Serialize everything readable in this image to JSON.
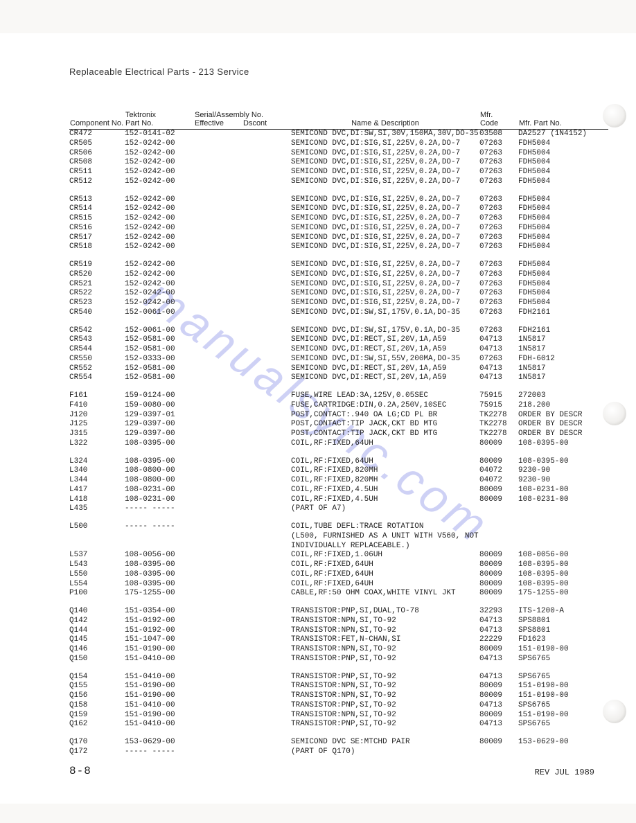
{
  "page_title": "Replaceable Electrical Parts - 213 Service",
  "headers": {
    "component": "Component No.",
    "tektronix": "Tektronix",
    "part_no": "Part No.",
    "serial_asm": "Serial/Assembly No.",
    "effective": "Effective",
    "dscont": "Dscont",
    "name_desc": "Name & Description",
    "mfr": "Mfr.",
    "code": "Code",
    "mfr_part": "Mfr. Part No."
  },
  "footer_left": "8-8",
  "footer_right": "REV JUL 1989",
  "watermark": "manualsync.com",
  "groups": [
    [
      {
        "comp": "CR472",
        "part": "152-0141-02",
        "eff": "",
        "dsc": "",
        "desc": "SEMICOND DVC,DI:SW,SI,30V,150MA,30V,DO-35",
        "code": "03508",
        "mfr": "DA2527 (1N4152)"
      },
      {
        "comp": "CR505",
        "part": "152-0242-00",
        "eff": "",
        "dsc": "",
        "desc": "SEMICOND DVC,DI:SIG,SI,225V,0.2A,DO-7",
        "code": "07263",
        "mfr": "FDH5004"
      },
      {
        "comp": "CR506",
        "part": "152-0242-00",
        "eff": "",
        "dsc": "",
        "desc": "SEMICOND DVC,DI:SIG,SI,225V,0.2A,DO-7",
        "code": "07263",
        "mfr": "FDH5004"
      },
      {
        "comp": "CR508",
        "part": "152-0242-00",
        "eff": "",
        "dsc": "",
        "desc": "SEMICOND DVC,DI:SIG,SI,225V,0.2A,DO-7",
        "code": "07263",
        "mfr": "FDH5004"
      },
      {
        "comp": "CR511",
        "part": "152-0242-00",
        "eff": "",
        "dsc": "",
        "desc": "SEMICOND DVC,DI:SIG,SI,225V,0.2A,DO-7",
        "code": "07263",
        "mfr": "FDH5004"
      },
      {
        "comp": "CR512",
        "part": "152-0242-00",
        "eff": "",
        "dsc": "",
        "desc": "SEMICOND DVC,DI:SIG,SI,225V,0.2A,DO-7",
        "code": "07263",
        "mfr": "FDH5004"
      }
    ],
    [
      {
        "comp": "CR513",
        "part": "152-0242-00",
        "eff": "",
        "dsc": "",
        "desc": "SEMICOND DVC,DI:SIG,SI,225V,0.2A,DO-7",
        "code": "07263",
        "mfr": "FDH5004"
      },
      {
        "comp": "CR514",
        "part": "152-0242-00",
        "eff": "",
        "dsc": "",
        "desc": "SEMICOND DVC,DI:SIG,SI,225V,0.2A,DO-7",
        "code": "07263",
        "mfr": "FDH5004"
      },
      {
        "comp": "CR515",
        "part": "152-0242-00",
        "eff": "",
        "dsc": "",
        "desc": "SEMICOND DVC,DI:SIG,SI,225V,0.2A,DO-7",
        "code": "07263",
        "mfr": "FDH5004"
      },
      {
        "comp": "CR516",
        "part": "152-0242-00",
        "eff": "",
        "dsc": "",
        "desc": "SEMICOND DVC,DI:SIG,SI,225V,0.2A,DO-7",
        "code": "07263",
        "mfr": "FDH5004"
      },
      {
        "comp": "CR517",
        "part": "152-0242-00",
        "eff": "",
        "dsc": "",
        "desc": "SEMICOND DVC,DI:SIG,SI,225V,0.2A,DO-7",
        "code": "07263",
        "mfr": "FDH5004"
      },
      {
        "comp": "CR518",
        "part": "152-0242-00",
        "eff": "",
        "dsc": "",
        "desc": "SEMICOND DVC,DI:SIG,SI,225V,0.2A,DO-7",
        "code": "07263",
        "mfr": "FDH5004"
      }
    ],
    [
      {
        "comp": "CR519",
        "part": "152-0242-00",
        "eff": "",
        "dsc": "",
        "desc": "SEMICOND DVC,DI:SIG,SI,225V,0.2A,DO-7",
        "code": "07263",
        "mfr": "FDH5004"
      },
      {
        "comp": "CR520",
        "part": "152-0242-00",
        "eff": "",
        "dsc": "",
        "desc": "SEMICOND DVC,DI:SIG,SI,225V,0.2A,DO-7",
        "code": "07263",
        "mfr": "FDH5004"
      },
      {
        "comp": "CR521",
        "part": "152-0242-00",
        "eff": "",
        "dsc": "",
        "desc": "SEMICOND DVC,DI:SIG,SI,225V,0.2A,DO-7",
        "code": "07263",
        "mfr": "FDH5004"
      },
      {
        "comp": "CR522",
        "part": "152-0242-00",
        "eff": "",
        "dsc": "",
        "desc": "SEMICOND DVC,DI:SIG,SI,225V,0.2A,DO-7",
        "code": "07263",
        "mfr": "FDH5004"
      },
      {
        "comp": "CR523",
        "part": "152-0242-00",
        "eff": "",
        "dsc": "",
        "desc": "SEMICOND DVC,DI:SIG,SI,225V,0.2A,DO-7",
        "code": "07263",
        "mfr": "FDH5004"
      },
      {
        "comp": "CR540",
        "part": "152-0061-00",
        "eff": "",
        "dsc": "",
        "desc": "SEMICOND DVC,DI:SW,SI,175V,0.1A,DO-35",
        "code": "07263",
        "mfr": "FDH2161"
      }
    ],
    [
      {
        "comp": "CR542",
        "part": "152-0061-00",
        "eff": "",
        "dsc": "",
        "desc": "SEMICOND DVC,DI:SW,SI,175V,0.1A,DO-35",
        "code": "07263",
        "mfr": "FDH2161"
      },
      {
        "comp": "CR543",
        "part": "152-0581-00",
        "eff": "",
        "dsc": "",
        "desc": "SEMICOND DVC,DI:RECT,SI,20V,1A,A59",
        "code": "04713",
        "mfr": "1N5817"
      },
      {
        "comp": "CR544",
        "part": "152-0581-00",
        "eff": "",
        "dsc": "",
        "desc": "SEMICOND DVC,DI:RECT,SI,20V,1A,A59",
        "code": "04713",
        "mfr": "1N5817"
      },
      {
        "comp": "CR550",
        "part": "152-0333-00",
        "eff": "",
        "dsc": "",
        "desc": "SEMICOND DVC,DI:SW,SI,55V,200MA,DO-35",
        "code": "07263",
        "mfr": "FDH-6012"
      },
      {
        "comp": "CR552",
        "part": "152-0581-00",
        "eff": "",
        "dsc": "",
        "desc": "SEMICOND DVC,DI:RECT,SI,20V,1A,A59",
        "code": "04713",
        "mfr": "1N5817"
      },
      {
        "comp": "CR554",
        "part": "152-0581-00",
        "eff": "",
        "dsc": "",
        "desc": "SEMICOND DVC,DI:RECT,SI,20V,1A,A59",
        "code": "04713",
        "mfr": "1N5817"
      }
    ],
    [
      {
        "comp": "F161",
        "part": "159-0124-00",
        "eff": "",
        "dsc": "",
        "desc": "FUSE,WIRE LEAD:3A,125V,0.05SEC",
        "code": "75915",
        "mfr": "272003"
      },
      {
        "comp": "F410",
        "part": "159-0080-00",
        "eff": "",
        "dsc": "",
        "desc": "FUSE,CARTRIDGE:DIN,0.2A,250V,10SEC",
        "code": "75915",
        "mfr": "218.200"
      },
      {
        "comp": "J120",
        "part": "129-0397-01",
        "eff": "",
        "dsc": "",
        "desc": "POST,CONTACT:.940 OA LG;CD PL BR",
        "code": "TK2278",
        "mfr": "ORDER BY DESCR"
      },
      {
        "comp": "J125",
        "part": "129-0397-00",
        "eff": "",
        "dsc": "",
        "desc": "POST,CONTACT:TIP JACK,CKT BD MTG",
        "code": "TK2278",
        "mfr": "ORDER BY DESCR"
      },
      {
        "comp": "J315",
        "part": "129-0397-00",
        "eff": "",
        "dsc": "",
        "desc": "POST,CONTACT:TIP JACK,CKT BD MTG",
        "code": "TK2278",
        "mfr": "ORDER BY DESCR"
      },
      {
        "comp": "L322",
        "part": "108-0395-00",
        "eff": "",
        "dsc": "",
        "desc": "COIL,RF:FIXED,64UH",
        "code": "80009",
        "mfr": "108-0395-00"
      }
    ],
    [
      {
        "comp": "L324",
        "part": "108-0395-00",
        "eff": "",
        "dsc": "",
        "desc": "COIL,RF:FIXED,64UH",
        "code": "80009",
        "mfr": "108-0395-00"
      },
      {
        "comp": "L340",
        "part": "108-0800-00",
        "eff": "",
        "dsc": "",
        "desc": "COIL,RF:FIXED,820MH",
        "code": "04072",
        "mfr": "9230-90"
      },
      {
        "comp": "L344",
        "part": "108-0800-00",
        "eff": "",
        "dsc": "",
        "desc": "COIL,RF:FIXED,820MH",
        "code": "04072",
        "mfr": "9230-90"
      },
      {
        "comp": "L417",
        "part": "108-0231-00",
        "eff": "",
        "dsc": "",
        "desc": "COIL,RF:FIXED,4.5UH",
        "code": "80009",
        "mfr": "108-0231-00"
      },
      {
        "comp": "L418",
        "part": "108-0231-00",
        "eff": "",
        "dsc": "",
        "desc": "COIL,RF:FIXED,4.5UH",
        "code": "80009",
        "mfr": "108-0231-00"
      },
      {
        "comp": "L435",
        "part": "----- -----",
        "eff": "",
        "dsc": "",
        "desc": "(PART OF A7)",
        "code": "",
        "mfr": ""
      }
    ],
    [
      {
        "comp": "L500",
        "part": "----- -----",
        "eff": "",
        "dsc": "",
        "desc": "COIL,TUBE DEFL:TRACE ROTATION",
        "code": "",
        "mfr": ""
      },
      {
        "comp": "",
        "part": "",
        "eff": "",
        "dsc": "",
        "desc": "(L500, FURNISHED AS A UNIT WITH V560, NOT",
        "code": "",
        "mfr": ""
      },
      {
        "comp": "",
        "part": "",
        "eff": "",
        "dsc": "",
        "desc": "INDIVIDUALLY REPLACEABLE.)",
        "code": "",
        "mfr": ""
      },
      {
        "comp": "L537",
        "part": "108-0056-00",
        "eff": "",
        "dsc": "",
        "desc": "COIL,RF:FIXED,1.06UH",
        "code": "80009",
        "mfr": "108-0056-00"
      },
      {
        "comp": "L543",
        "part": "108-0395-00",
        "eff": "",
        "dsc": "",
        "desc": "COIL,RF:FIXED,64UH",
        "code": "80009",
        "mfr": "108-0395-00"
      },
      {
        "comp": "L550",
        "part": "108-0395-00",
        "eff": "",
        "dsc": "",
        "desc": "COIL,RF:FIXED,64UH",
        "code": "80009",
        "mfr": "108-0395-00"
      },
      {
        "comp": "L554",
        "part": "108-0395-00",
        "eff": "",
        "dsc": "",
        "desc": "COIL,RF:FIXED,64UH",
        "code": "80009",
        "mfr": "108-0395-00"
      },
      {
        "comp": "P100",
        "part": "175-1255-00",
        "eff": "",
        "dsc": "",
        "desc": "CABLE,RF:50 OHM COAX,WHITE VINYL JKT",
        "code": "80009",
        "mfr": "175-1255-00"
      }
    ],
    [
      {
        "comp": "Q140",
        "part": "151-0354-00",
        "eff": "",
        "dsc": "",
        "desc": "TRANSISTOR:PNP,SI,DUAL,TO-78",
        "code": "32293",
        "mfr": "ITS-1200-A"
      },
      {
        "comp": "Q142",
        "part": "151-0192-00",
        "eff": "",
        "dsc": "",
        "desc": "TRANSISTOR:NPN,SI,TO-92",
        "code": "04713",
        "mfr": "SPS8801"
      },
      {
        "comp": "Q144",
        "part": "151-0192-00",
        "eff": "",
        "dsc": "",
        "desc": "TRANSISTOR:NPN,SI,TO-92",
        "code": "04713",
        "mfr": "SPS8801"
      },
      {
        "comp": "Q145",
        "part": "151-1047-00",
        "eff": "",
        "dsc": "",
        "desc": "TRANSISTOR:FET,N-CHAN,SI",
        "code": "22229",
        "mfr": "FD1623"
      },
      {
        "comp": "Q146",
        "part": "151-0190-00",
        "eff": "",
        "dsc": "",
        "desc": "TRANSISTOR:NPN,SI,TO-92",
        "code": "80009",
        "mfr": "151-0190-00"
      },
      {
        "comp": "Q150",
        "part": "151-0410-00",
        "eff": "",
        "dsc": "",
        "desc": "TRANSISTOR:PNP,SI,TO-92",
        "code": "04713",
        "mfr": "SPS6765"
      }
    ],
    [
      {
        "comp": "Q154",
        "part": "151-0410-00",
        "eff": "",
        "dsc": "",
        "desc": "TRANSISTOR:PNP,SI,TO-92",
        "code": "04713",
        "mfr": "SPS6765"
      },
      {
        "comp": "Q155",
        "part": "151-0190-00",
        "eff": "",
        "dsc": "",
        "desc": "TRANSISTOR:NPN,SI,TO-92",
        "code": "80009",
        "mfr": "151-0190-00"
      },
      {
        "comp": "Q156",
        "part": "151-0190-00",
        "eff": "",
        "dsc": "",
        "desc": "TRANSISTOR:NPN,SI,TO-92",
        "code": "80009",
        "mfr": "151-0190-00"
      },
      {
        "comp": "Q158",
        "part": "151-0410-00",
        "eff": "",
        "dsc": "",
        "desc": "TRANSISTOR:PNP,SI,TO-92",
        "code": "04713",
        "mfr": "SPS6765"
      },
      {
        "comp": "Q159",
        "part": "151-0190-00",
        "eff": "",
        "dsc": "",
        "desc": "TRANSISTOR:NPN,SI,TO-92",
        "code": "80009",
        "mfr": "151-0190-00"
      },
      {
        "comp": "Q162",
        "part": "151-0410-00",
        "eff": "",
        "dsc": "",
        "desc": "TRANSISTOR:PNP,SI,TO-92",
        "code": "04713",
        "mfr": "SPS6765"
      }
    ],
    [
      {
        "comp": "Q170",
        "part": "153-0629-00",
        "eff": "",
        "dsc": "",
        "desc": "SEMICOND DVC SE:MTCHD PAIR",
        "code": "80009",
        "mfr": "153-0629-00"
      },
      {
        "comp": "Q172",
        "part": "----- -----",
        "eff": "",
        "dsc": "",
        "desc": "(PART OF Q170)",
        "code": "",
        "mfr": ""
      }
    ]
  ]
}
